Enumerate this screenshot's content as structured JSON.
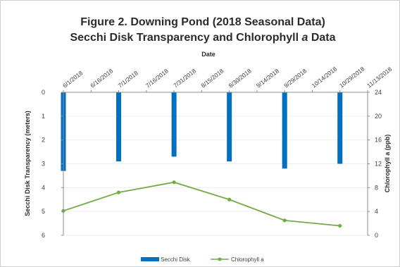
{
  "chart_data": {
    "type": "bar",
    "title_line1": "Figure 2. Downing Pond (2018 Seasonal Data)",
    "title_line2_pre": "Secchi Disk Transparency and Chlorophyll ",
    "title_line2_italic": "a",
    "title_line2_post": " Data",
    "xlabel": "Date",
    "ylabel_left": "Secchi Disk Transparency (meters)",
    "ylabel_right": "Chlorophyll a (ppb)",
    "x_ticks": [
      "6/1/2018",
      "6/16/2018",
      "7/1/2018",
      "7/16/2018",
      "7/31/2018",
      "8/15/2018",
      "8/30/2018",
      "9/14/2018",
      "9/29/2018",
      "10/14/2018",
      "10/29/2018",
      "11/13/2018"
    ],
    "left_axis": {
      "ylim": [
        0,
        6
      ],
      "ticks": [
        "0",
        "1",
        "2",
        "3",
        "4",
        "5",
        "6"
      ],
      "inverted": true
    },
    "right_axis": {
      "ylim": [
        0,
        24
      ],
      "ticks": [
        "0",
        "4",
        "8",
        "12",
        "16",
        "20",
        "24"
      ]
    },
    "series": [
      {
        "name": "Secchi Disk",
        "type": "bar",
        "axis": "left",
        "color": "#0070C0",
        "x": [
          "6/1/2018",
          "7/1/2018",
          "7/31/2018",
          "8/30/2018",
          "9/29/2018",
          "10/29/2018"
        ],
        "values": [
          3.3,
          2.9,
          2.7,
          2.9,
          3.2,
          3.0
        ]
      },
      {
        "name": "Chlorophyll a",
        "type": "line",
        "axis": "right",
        "color": "#70AD47",
        "x": [
          "6/1/2018",
          "7/1/2018",
          "7/31/2018",
          "8/30/2018",
          "9/29/2018",
          "10/29/2018"
        ],
        "values": [
          4.1,
          7.2,
          8.9,
          6.0,
          2.5,
          1.6
        ]
      }
    ],
    "legend": {
      "position": "bottom",
      "labels": [
        "Secchi Disk",
        "Chlorophyll a"
      ]
    }
  }
}
